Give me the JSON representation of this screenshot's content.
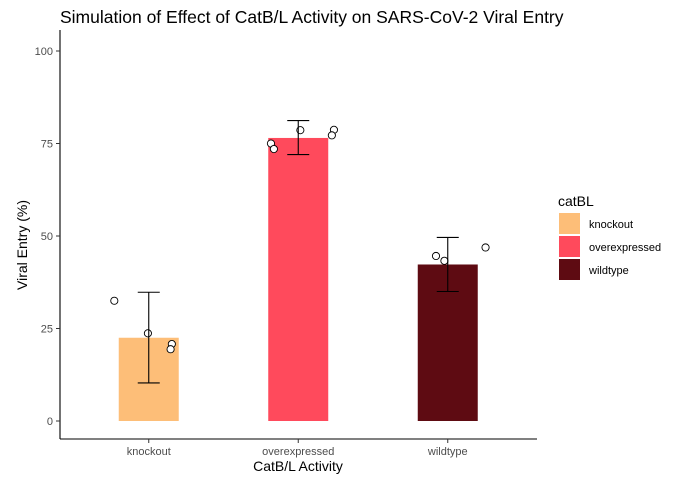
{
  "chart_data": {
    "type": "bar",
    "title": "Simulation of Effect of CatB/L Activity on SARS-CoV-2 Viral Entry",
    "xlabel": "CatB/L Activity",
    "ylabel": "Viral Entry (%)",
    "ylim": [
      0,
      100
    ],
    "yticks": [
      0,
      25,
      50,
      75,
      100
    ],
    "grid": false,
    "categories": [
      "knockout",
      "overexpressed",
      "wildtype"
    ],
    "values": [
      22.5,
      76.5,
      42.3
    ],
    "error_low": [
      10.3,
      72.0,
      35.0
    ],
    "error_high": [
      34.8,
      81.2,
      49.6
    ],
    "colors": [
      "#FDBE78",
      "#FF4A5C",
      "#5E0B12"
    ],
    "points": [
      {
        "category": "knockout",
        "offset": -0.82,
        "y": 32.5
      },
      {
        "category": "knockout",
        "offset": -0.02,
        "y": 23.7
      },
      {
        "category": "knockout",
        "offset": 0.55,
        "y": 20.8
      },
      {
        "category": "knockout",
        "offset": 0.52,
        "y": 19.4
      },
      {
        "category": "overexpressed",
        "offset": -0.65,
        "y": 75.0
      },
      {
        "category": "overexpressed",
        "offset": -0.58,
        "y": 73.5
      },
      {
        "category": "overexpressed",
        "offset": 0.05,
        "y": 78.6
      },
      {
        "category": "overexpressed",
        "offset": 0.85,
        "y": 78.7
      },
      {
        "category": "overexpressed",
        "offset": 0.8,
        "y": 77.2
      },
      {
        "category": "wildtype",
        "offset": -0.28,
        "y": 44.6
      },
      {
        "category": "wildtype",
        "offset": -0.08,
        "y": 43.3
      },
      {
        "category": "wildtype",
        "offset": 0.9,
        "y": 46.9
      }
    ],
    "legend": {
      "title": "catBL",
      "position": "right",
      "entries": [
        "knockout",
        "overexpressed",
        "wildtype"
      ]
    }
  }
}
